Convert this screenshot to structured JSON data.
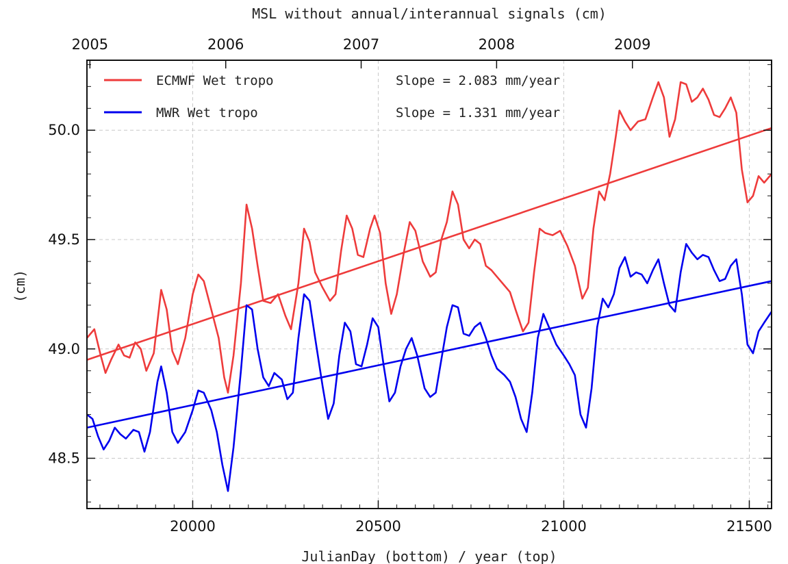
{
  "chart_data": {
    "type": "line",
    "title": "MSL without annual/interannual signals (cm)",
    "xlabel": "JulianDay (bottom) / year (top)",
    "ylabel": "(cm)",
    "xlim": [
      19715,
      21560
    ],
    "ylim": [
      48.27,
      50.32
    ],
    "x_ticks": [
      20000,
      20500,
      21000,
      21500
    ],
    "y_ticks": [
      48.5,
      49.0,
      49.5,
      50.0
    ],
    "x_tick_labels": [
      "20000",
      "20500",
      "21000",
      "21500"
    ],
    "y_tick_labels": [
      "48.5",
      "49.0",
      "49.5",
      "50.0"
    ],
    "top_axis_labels": [
      {
        "label": "2005",
        "x": 19723
      },
      {
        "label": "2006",
        "x": 20089
      },
      {
        "label": "2007",
        "x": 20454
      },
      {
        "label": "2008",
        "x": 20819
      },
      {
        "label": "2009",
        "x": 21185
      }
    ],
    "grid": true,
    "legend_position": "top-left",
    "series": [
      {
        "name": "ECMWF Wet tropo",
        "color": "#ee3b3b",
        "slope_label": "Slope = 2.083 mm/year",
        "trend": [
          [
            19715,
            48.95
          ],
          [
            21560,
            50.01
          ]
        ],
        "points": [
          [
            19715,
            49.05
          ],
          [
            19735,
            49.09
          ],
          [
            19752,
            48.97
          ],
          [
            19765,
            48.89
          ],
          [
            19780,
            48.95
          ],
          [
            19800,
            49.02
          ],
          [
            19815,
            48.97
          ],
          [
            19830,
            48.96
          ],
          [
            19845,
            49.03
          ],
          [
            19860,
            49.0
          ],
          [
            19875,
            48.9
          ],
          [
            19895,
            48.98
          ],
          [
            19915,
            49.27
          ],
          [
            19930,
            49.18
          ],
          [
            19945,
            48.99
          ],
          [
            19960,
            48.93
          ],
          [
            19980,
            49.05
          ],
          [
            20000,
            49.25
          ],
          [
            20015,
            49.34
          ],
          [
            20030,
            49.31
          ],
          [
            20050,
            49.18
          ],
          [
            20070,
            49.05
          ],
          [
            20085,
            48.87
          ],
          [
            20095,
            48.8
          ],
          [
            20110,
            48.97
          ],
          [
            20130,
            49.3
          ],
          [
            20145,
            49.66
          ],
          [
            20160,
            49.55
          ],
          [
            20175,
            49.38
          ],
          [
            20190,
            49.22
          ],
          [
            20210,
            49.21
          ],
          [
            20230,
            49.25
          ],
          [
            20250,
            49.15
          ],
          [
            20265,
            49.09
          ],
          [
            20285,
            49.3
          ],
          [
            20300,
            49.55
          ],
          [
            20315,
            49.49
          ],
          [
            20330,
            49.35
          ],
          [
            20350,
            49.28
          ],
          [
            20370,
            49.22
          ],
          [
            20385,
            49.25
          ],
          [
            20400,
            49.45
          ],
          [
            20415,
            49.61
          ],
          [
            20430,
            49.55
          ],
          [
            20445,
            49.43
          ],
          [
            20460,
            49.42
          ],
          [
            20478,
            49.55
          ],
          [
            20490,
            49.61
          ],
          [
            20505,
            49.53
          ],
          [
            20520,
            49.3
          ],
          [
            20535,
            49.16
          ],
          [
            20550,
            49.25
          ],
          [
            20570,
            49.45
          ],
          [
            20585,
            49.58
          ],
          [
            20600,
            49.54
          ],
          [
            20620,
            49.4
          ],
          [
            20640,
            49.33
          ],
          [
            20655,
            49.35
          ],
          [
            20670,
            49.5
          ],
          [
            20685,
            49.58
          ],
          [
            20700,
            49.72
          ],
          [
            20715,
            49.66
          ],
          [
            20730,
            49.5
          ],
          [
            20745,
            49.46
          ],
          [
            20760,
            49.5
          ],
          [
            20775,
            49.48
          ],
          [
            20790,
            49.38
          ],
          [
            20805,
            49.36
          ],
          [
            20820,
            49.33
          ],
          [
            20840,
            49.29
          ],
          [
            20855,
            49.26
          ],
          [
            20870,
            49.18
          ],
          [
            20890,
            49.08
          ],
          [
            20905,
            49.12
          ],
          [
            20920,
            49.35
          ],
          [
            20935,
            49.55
          ],
          [
            20950,
            49.53
          ],
          [
            20970,
            49.52
          ],
          [
            20990,
            49.54
          ],
          [
            21010,
            49.47
          ],
          [
            21030,
            49.38
          ],
          [
            21050,
            49.23
          ],
          [
            21065,
            49.28
          ],
          [
            21080,
            49.55
          ],
          [
            21095,
            49.72
          ],
          [
            21110,
            49.68
          ],
          [
            21125,
            49.8
          ],
          [
            21140,
            49.97
          ],
          [
            21150,
            50.09
          ],
          [
            21165,
            50.04
          ],
          [
            21180,
            50.0
          ],
          [
            21200,
            50.04
          ],
          [
            21220,
            50.05
          ],
          [
            21240,
            50.15
          ],
          [
            21255,
            50.22
          ],
          [
            21270,
            50.15
          ],
          [
            21285,
            49.97
          ],
          [
            21300,
            50.05
          ],
          [
            21315,
            50.22
          ],
          [
            21330,
            50.21
          ],
          [
            21345,
            50.13
          ],
          [
            21360,
            50.15
          ],
          [
            21375,
            50.19
          ],
          [
            21390,
            50.14
          ],
          [
            21405,
            50.07
          ],
          [
            21420,
            50.06
          ],
          [
            21435,
            50.1
          ],
          [
            21450,
            50.15
          ],
          [
            21465,
            50.08
          ],
          [
            21480,
            49.82
          ],
          [
            21495,
            49.67
          ],
          [
            21510,
            49.7
          ],
          [
            21525,
            49.79
          ],
          [
            21540,
            49.76
          ],
          [
            21560,
            49.8
          ]
        ]
      },
      {
        "name": "MWR Wet tropo",
        "color": "#0000ee",
        "slope_label": "Slope = 1.331 mm/year",
        "trend": [
          [
            19715,
            48.64
          ],
          [
            21560,
            49.31
          ]
        ],
        "points": [
          [
            19715,
            48.7
          ],
          [
            19730,
            48.68
          ],
          [
            19745,
            48.6
          ],
          [
            19760,
            48.54
          ],
          [
            19775,
            48.58
          ],
          [
            19790,
            48.64
          ],
          [
            19805,
            48.61
          ],
          [
            19820,
            48.59
          ],
          [
            19840,
            48.63
          ],
          [
            19855,
            48.62
          ],
          [
            19870,
            48.53
          ],
          [
            19885,
            48.62
          ],
          [
            19905,
            48.85
          ],
          [
            19915,
            48.92
          ],
          [
            19930,
            48.8
          ],
          [
            19945,
            48.62
          ],
          [
            19960,
            48.57
          ],
          [
            19980,
            48.62
          ],
          [
            20000,
            48.72
          ],
          [
            20015,
            48.81
          ],
          [
            20030,
            48.8
          ],
          [
            20050,
            48.72
          ],
          [
            20065,
            48.62
          ],
          [
            20080,
            48.47
          ],
          [
            20095,
            48.35
          ],
          [
            20110,
            48.55
          ],
          [
            20130,
            48.9
          ],
          [
            20145,
            49.2
          ],
          [
            20160,
            49.18
          ],
          [
            20175,
            49.0
          ],
          [
            20190,
            48.87
          ],
          [
            20205,
            48.83
          ],
          [
            20220,
            48.89
          ],
          [
            20240,
            48.86
          ],
          [
            20255,
            48.77
          ],
          [
            20270,
            48.8
          ],
          [
            20285,
            49.05
          ],
          [
            20300,
            49.25
          ],
          [
            20315,
            49.22
          ],
          [
            20330,
            49.05
          ],
          [
            20350,
            48.83
          ],
          [
            20365,
            48.68
          ],
          [
            20380,
            48.75
          ],
          [
            20395,
            48.97
          ],
          [
            20410,
            49.12
          ],
          [
            20425,
            49.08
          ],
          [
            20440,
            48.93
          ],
          [
            20455,
            48.92
          ],
          [
            20470,
            49.02
          ],
          [
            20485,
            49.14
          ],
          [
            20500,
            49.1
          ],
          [
            20515,
            48.92
          ],
          [
            20530,
            48.76
          ],
          [
            20545,
            48.8
          ],
          [
            20560,
            48.92
          ],
          [
            20575,
            49.0
          ],
          [
            20590,
            49.05
          ],
          [
            20605,
            48.97
          ],
          [
            20625,
            48.82
          ],
          [
            20640,
            48.78
          ],
          [
            20655,
            48.8
          ],
          [
            20670,
            48.95
          ],
          [
            20685,
            49.1
          ],
          [
            20700,
            49.2
          ],
          [
            20715,
            49.19
          ],
          [
            20730,
            49.07
          ],
          [
            20745,
            49.06
          ],
          [
            20760,
            49.1
          ],
          [
            20775,
            49.12
          ],
          [
            20790,
            49.05
          ],
          [
            20805,
            48.97
          ],
          [
            20820,
            48.91
          ],
          [
            20840,
            48.88
          ],
          [
            20855,
            48.85
          ],
          [
            20870,
            48.78
          ],
          [
            20885,
            48.68
          ],
          [
            20900,
            48.62
          ],
          [
            20915,
            48.8
          ],
          [
            20930,
            49.05
          ],
          [
            20945,
            49.16
          ],
          [
            20960,
            49.1
          ],
          [
            20980,
            49.02
          ],
          [
            21000,
            48.97
          ],
          [
            21015,
            48.93
          ],
          [
            21030,
            48.88
          ],
          [
            21045,
            48.7
          ],
          [
            21060,
            48.64
          ],
          [
            21075,
            48.82
          ],
          [
            21090,
            49.1
          ],
          [
            21105,
            49.23
          ],
          [
            21120,
            49.19
          ],
          [
            21135,
            49.25
          ],
          [
            21150,
            49.37
          ],
          [
            21165,
            49.42
          ],
          [
            21180,
            49.33
          ],
          [
            21195,
            49.35
          ],
          [
            21210,
            49.34
          ],
          [
            21225,
            49.3
          ],
          [
            21240,
            49.36
          ],
          [
            21255,
            49.41
          ],
          [
            21270,
            49.3
          ],
          [
            21285,
            49.2
          ],
          [
            21300,
            49.17
          ],
          [
            21315,
            49.35
          ],
          [
            21330,
            49.48
          ],
          [
            21345,
            49.44
          ],
          [
            21360,
            49.41
          ],
          [
            21375,
            49.43
          ],
          [
            21390,
            49.42
          ],
          [
            21405,
            49.36
          ],
          [
            21420,
            49.31
          ],
          [
            21435,
            49.32
          ],
          [
            21450,
            49.38
          ],
          [
            21465,
            49.41
          ],
          [
            21480,
            49.25
          ],
          [
            21495,
            49.02
          ],
          [
            21510,
            48.98
          ],
          [
            21525,
            49.08
          ],
          [
            21540,
            49.12
          ],
          [
            21560,
            49.17
          ]
        ]
      }
    ]
  }
}
